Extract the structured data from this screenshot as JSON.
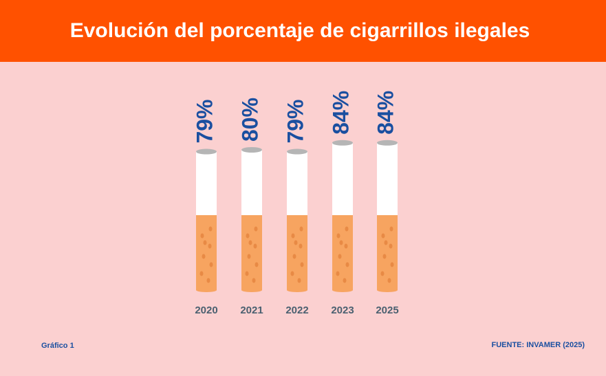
{
  "chart_data": {
    "type": "bar",
    "title": "Evolución del porcentaje de cigarrillos ilegales",
    "categories": [
      "2020",
      "2021",
      "2022",
      "2023",
      "2025"
    ],
    "values": [
      79,
      80,
      79,
      84,
      84
    ],
    "value_labels": [
      "79%",
      "80%",
      "79%",
      "84%",
      "84%"
    ],
    "caption": "Gráfico 1",
    "source": "FUENTE: INVAMER (2025)"
  }
}
